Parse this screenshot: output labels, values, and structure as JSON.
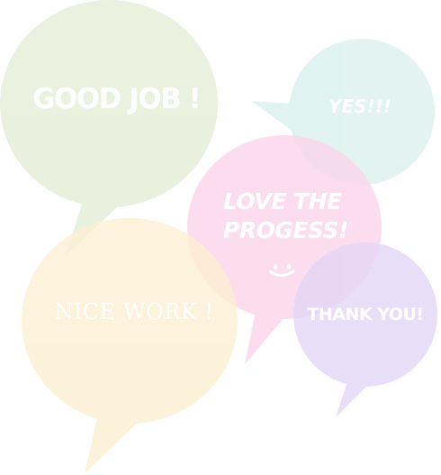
{
  "colors": {
    "green_bubble": "#e8efdb",
    "teal_bubble": "#dff2ef",
    "pink_bubble": "#fbd4ea",
    "yellow_bubble": "#fcefd2",
    "purple_bubble": "#e3d5f6",
    "text": "#ffffff"
  },
  "bubbles": {
    "good_job": {
      "text": "GOOD JOB !"
    },
    "yes": {
      "text": "YES!!!"
    },
    "love": {
      "line1": "LOVE THE",
      "line2": "PROGESS!",
      "icon": "smiley-face-icon"
    },
    "nice_work": {
      "text": "NICE WORK !"
    },
    "thank_you": {
      "text": "THANK YOU!"
    }
  }
}
